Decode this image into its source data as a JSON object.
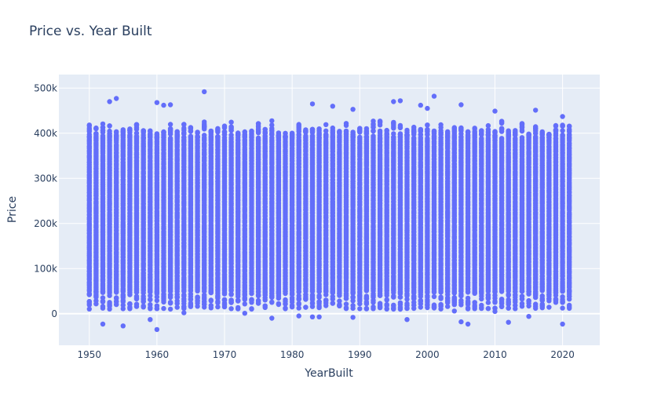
{
  "chart_data": {
    "type": "scatter",
    "title": "Price vs. Year Built",
    "xlabel": "YearBuilt",
    "ylabel": "Price",
    "xlim": [
      1945.5,
      2025.5
    ],
    "ylim": [
      -70000,
      530000
    ],
    "x_ticks": [
      1950,
      1960,
      1970,
      1980,
      1990,
      2000,
      2010,
      2020
    ],
    "x_tick_labels": [
      "1950",
      "1960",
      "1970",
      "1980",
      "1990",
      "2000",
      "2010",
      "2020"
    ],
    "y_ticks": [
      0,
      100000,
      200000,
      300000,
      400000,
      500000
    ],
    "y_tick_labels": [
      "0",
      "100k",
      "200k",
      "300k",
      "400k",
      "500k"
    ],
    "grid": true,
    "marker_color": "#636efa",
    "plot_bg": "#e5ecf6",
    "series": [
      {
        "x_range": [
          1950,
          2021
        ],
        "dense_band": [
          50000,
          390000
        ],
        "outliers": [
          [
            1953,
            470000
          ],
          [
            1954,
            477000
          ],
          [
            1960,
            468000
          ],
          [
            1961,
            462000
          ],
          [
            1962,
            463000
          ],
          [
            1967,
            492000
          ],
          [
            1983,
            465000
          ],
          [
            1986,
            460000
          ],
          [
            1989,
            453000
          ],
          [
            1995,
            470000
          ],
          [
            1996,
            472000
          ],
          [
            1999,
            462000
          ],
          [
            2000,
            455000
          ],
          [
            2001,
            482000
          ],
          [
            2005,
            463000
          ],
          [
            2010,
            449000
          ],
          [
            2016,
            451000
          ],
          [
            2020,
            437000
          ],
          [
            1952,
            -23000
          ],
          [
            1955,
            -27000
          ],
          [
            1959,
            -13000
          ],
          [
            1960,
            -35000
          ],
          [
            1977,
            -10000
          ],
          [
            1981,
            -5000
          ],
          [
            1983,
            -7000
          ],
          [
            1984,
            -7000
          ],
          [
            1989,
            -8000
          ],
          [
            1997,
            -13000
          ],
          [
            2005,
            -18000
          ],
          [
            2006,
            -23000
          ],
          [
            2012,
            -19000
          ],
          [
            2015,
            -6000
          ],
          [
            2020,
            -23000
          ],
          [
            2010,
            5000
          ],
          [
            2021,
            15000
          ],
          [
            1964,
            2000
          ],
          [
            1973,
            1000
          ],
          [
            2004,
            6000
          ]
        ]
      }
    ]
  }
}
